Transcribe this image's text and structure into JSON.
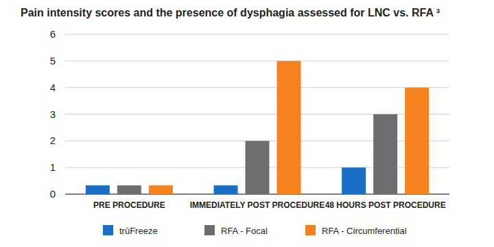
{
  "chart_data": {
    "type": "bar",
    "title": "Pain intensity scores and the presence of dysphagia assessed for LNC vs. RFA ³",
    "categories": [
      "PRE PROCEDURE",
      "IMMEDIATELY POST PROCEDURE",
      "48 HOURS POST PROCEDURE"
    ],
    "series": [
      {
        "name": "trūFreeze",
        "color": "#1a6fc4",
        "values": [
          0.33,
          0.33,
          1
        ]
      },
      {
        "name": "RFA - Focal",
        "color": "#6d6e70",
        "values": [
          0.33,
          2,
          3
        ]
      },
      {
        "name": "RFA - Circumferential",
        "color": "#f5821f",
        "values": [
          0.33,
          5,
          4
        ]
      }
    ],
    "ylim": [
      0,
      6
    ],
    "yticks": [
      0,
      1,
      2,
      3,
      4,
      5,
      6
    ],
    "grid": true,
    "legend": "bottom"
  }
}
